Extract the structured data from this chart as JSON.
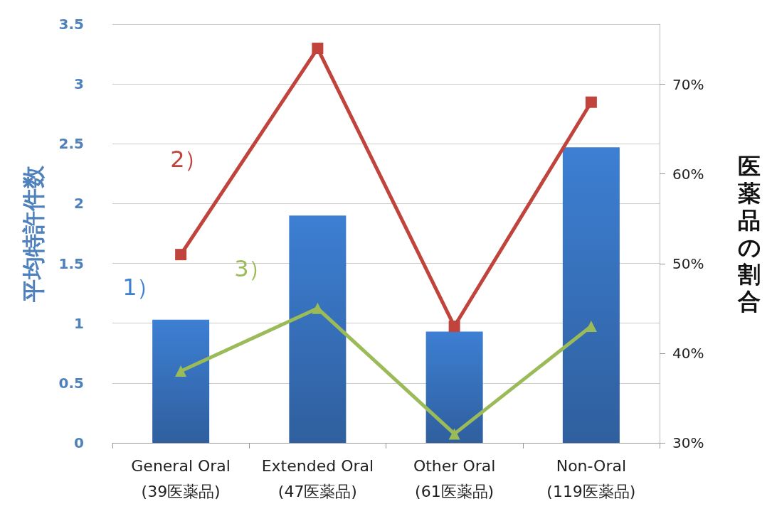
{
  "chart_data": {
    "type": "bar",
    "ylabel": "平均特許件数",
    "y2label": "医薬品の割合",
    "categories": [
      "General Oral\n(39医薬品)",
      "Extended Oral\n(47医薬品)",
      "Other Oral\n(61医薬品)",
      "Non-Oral\n(119医薬品)"
    ],
    "series": [
      {
        "name": "1）",
        "color": "#3d7fd3",
        "values": [
          1.03,
          1.9,
          0.93,
          2.47
        ]
      },
      {
        "name": "2）",
        "type": "line",
        "axis": "y2",
        "color": "#c0433c",
        "marker": "square",
        "values": [
          51,
          74,
          43,
          68
        ]
      },
      {
        "name": "3）",
        "type": "line",
        "axis": "y2",
        "color": "#9bbb59",
        "marker": "triangle",
        "values": [
          38,
          45,
          31,
          43
        ]
      }
    ],
    "ylim": [
      0,
      3.5
    ],
    "yticks": [
      0,
      0.5,
      1,
      1.5,
      2,
      2.5,
      3,
      3.5
    ],
    "y2lim": [
      30,
      76.7
    ],
    "y2ticks": [
      {
        "value": 30,
        "label": "30%"
      },
      {
        "value": 40,
        "label": "40%"
      },
      {
        "value": 50,
        "label": "50%"
      },
      {
        "value": 60,
        "label": "60%"
      },
      {
        "value": 70,
        "label": "70%"
      }
    ],
    "grid": "y",
    "line_style": "solid"
  }
}
